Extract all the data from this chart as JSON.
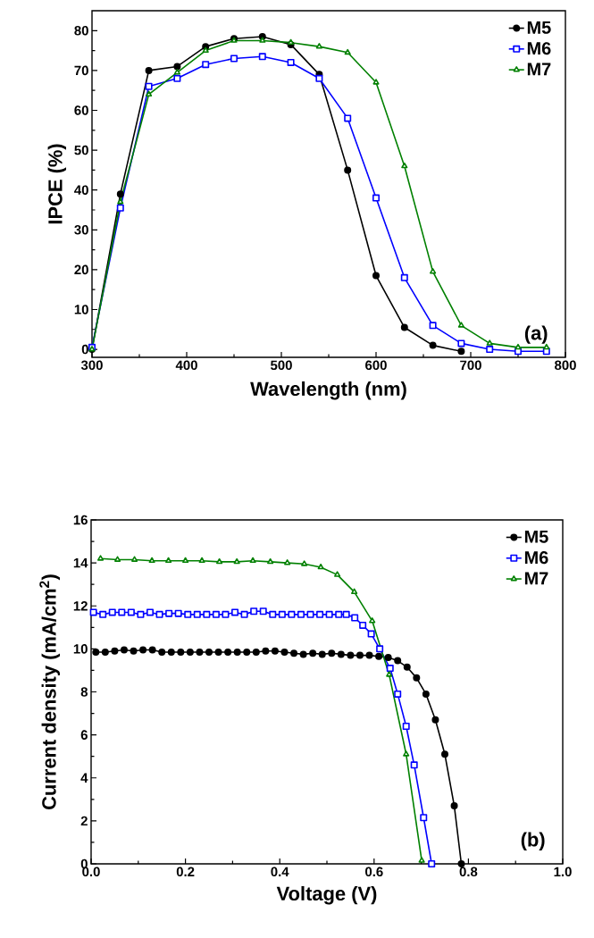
{
  "chart_data": [
    {
      "type": "line",
      "xlabel": "Wavelength (nm)",
      "ylabel": "IPCE (%)",
      "xlim": [
        300,
        800
      ],
      "ylim": [
        -2,
        85
      ],
      "xticks": [
        300,
        400,
        500,
        600,
        700,
        800
      ],
      "yticks": [
        0,
        10,
        20,
        30,
        40,
        50,
        60,
        70,
        80
      ],
      "legend": "top right",
      "annotations": [
        "(a)"
      ],
      "grid": false,
      "x": [
        300,
        330,
        360,
        390,
        420,
        450,
        480,
        510,
        540,
        570,
        600,
        630,
        660,
        690,
        720,
        750,
        780
      ],
      "series": [
        {
          "name": "M5",
          "color": "#000000",
          "marker": "circle",
          "x": [
            300,
            330,
            360,
            390,
            420,
            450,
            480,
            510,
            540,
            570,
            600,
            630,
            660,
            690
          ],
          "values": [
            0,
            39,
            70,
            71,
            76,
            78,
            78.5,
            76.5,
            69,
            45,
            18.5,
            5.5,
            1,
            -0.5
          ]
        },
        {
          "name": "M6",
          "color": "#0000ff",
          "marker": "square",
          "values": [
            0.5,
            35.5,
            66,
            68,
            71.5,
            73,
            73.5,
            72,
            68,
            58,
            38,
            18,
            6,
            1.5,
            0,
            -0.5,
            -0.5
          ]
        },
        {
          "name": "M7",
          "color": "#008000",
          "marker": "triangle",
          "values": [
            0,
            37,
            64,
            69.5,
            75,
            77.5,
            77.5,
            77,
            76,
            74.5,
            67,
            46,
            19.5,
            6,
            1.5,
            0.5,
            0.5
          ]
        }
      ]
    },
    {
      "type": "line",
      "xlabel": "Voltage (V)",
      "ylabel": "Current density (mA/cm$^{2}$)",
      "xlim": [
        0,
        1
      ],
      "ylim": [
        0,
        16
      ],
      "xticks": [
        {
          "value": 0,
          "label": "0.0"
        },
        0.2,
        0.4,
        0.6,
        0.8,
        {
          "value": 1,
          "label": "1.0"
        }
      ],
      "yticks": [
        0,
        2,
        4,
        6,
        8,
        10,
        12,
        14,
        16
      ],
      "legend": "top right",
      "annotations": [
        "(b)"
      ],
      "grid": false,
      "series": [
        {
          "name": "M5",
          "color": "#000000",
          "marker": "circle",
          "x": [
            0.01,
            0.03,
            0.05,
            0.07,
            0.09,
            0.11,
            0.13,
            0.15,
            0.17,
            0.19,
            0.21,
            0.23,
            0.25,
            0.27,
            0.29,
            0.31,
            0.33,
            0.35,
            0.37,
            0.39,
            0.41,
            0.43,
            0.45,
            0.47,
            0.49,
            0.51,
            0.53,
            0.55,
            0.57,
            0.59,
            0.61,
            0.63,
            0.65,
            0.67,
            0.69,
            0.71,
            0.73,
            0.75,
            0.77,
            0.785
          ],
          "values": [
            9.85,
            9.85,
            9.9,
            9.95,
            9.9,
            9.95,
            9.95,
            9.85,
            9.85,
            9.85,
            9.85,
            9.85,
            9.85,
            9.85,
            9.85,
            9.85,
            9.85,
            9.85,
            9.9,
            9.9,
            9.85,
            9.8,
            9.75,
            9.8,
            9.75,
            9.8,
            9.75,
            9.7,
            9.7,
            9.7,
            9.65,
            9.6,
            9.45,
            9.15,
            8.65,
            7.9,
            6.7,
            5.1,
            2.7,
            0
          ]
        },
        {
          "name": "M6",
          "color": "#0000ff",
          "marker": "square",
          "x": [
            0.005,
            0.025,
            0.045,
            0.065,
            0.085,
            0.105,
            0.125,
            0.145,
            0.165,
            0.185,
            0.205,
            0.225,
            0.245,
            0.265,
            0.285,
            0.305,
            0.325,
            0.345,
            0.365,
            0.385,
            0.405,
            0.425,
            0.445,
            0.465,
            0.485,
            0.505,
            0.525,
            0.541,
            0.559,
            0.576,
            0.594,
            0.612,
            0.634,
            0.65,
            0.668,
            0.685,
            0.705,
            0.722
          ],
          "values": [
            11.7,
            11.6,
            11.7,
            11.7,
            11.7,
            11.6,
            11.7,
            11.6,
            11.65,
            11.65,
            11.6,
            11.6,
            11.6,
            11.6,
            11.6,
            11.7,
            11.6,
            11.75,
            11.75,
            11.6,
            11.6,
            11.6,
            11.6,
            11.6,
            11.6,
            11.6,
            11.6,
            11.6,
            11.45,
            11.1,
            10.7,
            10.0,
            9.1,
            7.9,
            6.4,
            4.6,
            2.15,
            0
          ]
        },
        {
          "name": "M7",
          "color": "#008000",
          "marker": "triangle",
          "x": [
            0.02,
            0.056,
            0.092,
            0.129,
            0.164,
            0.2,
            0.235,
            0.272,
            0.309,
            0.343,
            0.38,
            0.416,
            0.452,
            0.487,
            0.522,
            0.558,
            0.596,
            0.632,
            0.668,
            0.701
          ],
          "values": [
            14.2,
            14.15,
            14.15,
            14.1,
            14.1,
            14.1,
            14.1,
            14.05,
            14.05,
            14.1,
            14.05,
            14.0,
            13.95,
            13.8,
            13.45,
            12.65,
            11.3,
            8.8,
            5.1,
            0.15
          ]
        }
      ]
    }
  ]
}
